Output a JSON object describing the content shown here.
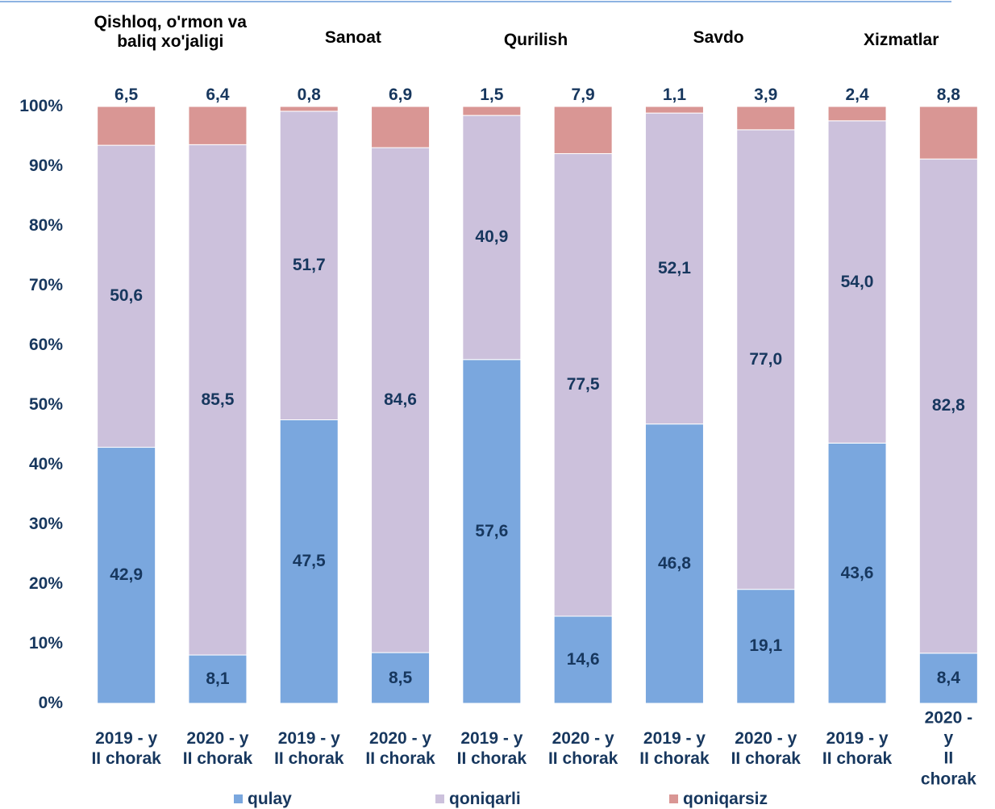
{
  "chart_data": {
    "type": "stacked_bar",
    "groups": [
      "Qishloq, o'rmon va\nbaliq xo'jaligi",
      "Sanoat",
      "Qurilish",
      "Savdo",
      "Xizmatlar"
    ],
    "categories": [
      "2019 - y\nII chorak",
      "2020 - y\nII chorak",
      "2019 - y\nII chorak",
      "2020 - y\nII chorak",
      "2019 - y\nII chorak",
      "2020 - y\nII chorak",
      "2019 - y\nII chorak",
      "2020 - y\nII chorak",
      "2019 - y\nII chorak",
      "2020 - y\nII chorak"
    ],
    "series": [
      {
        "name": "qulay",
        "color": "#7aa7de",
        "values": [
          42.9,
          8.1,
          47.5,
          8.5,
          57.6,
          14.6,
          46.8,
          19.1,
          43.6,
          8.4
        ],
        "value_labels": [
          "42,9",
          "8,1",
          "47,5",
          "8,5",
          "57,6",
          "14,6",
          "46,8",
          "19,1",
          "43,6",
          "8,4"
        ]
      },
      {
        "name": "qoniqarli",
        "color": "#ccc1dc",
        "values": [
          50.6,
          85.5,
          51.7,
          84.6,
          40.9,
          77.5,
          52.1,
          77.0,
          54.0,
          82.8
        ],
        "value_labels": [
          "50,6",
          "85,5",
          "51,7",
          "84,6",
          "40,9",
          "77,5",
          "52,1",
          "77,0",
          "54,0",
          "82,8"
        ]
      },
      {
        "name": "qoniqarsiz",
        "color": "#d99694",
        "values": [
          6.5,
          6.4,
          0.8,
          6.9,
          1.5,
          7.9,
          1.1,
          3.9,
          2.4,
          8.8
        ],
        "value_labels": [
          "6,5",
          "6,4",
          "0,8",
          "6,9",
          "1,5",
          "7,9",
          "1,1",
          "3,9",
          "2,4",
          "8,8"
        ]
      }
    ],
    "ylim": [
      0,
      100
    ],
    "yticks": [
      {
        "value": 0,
        "label": "0%"
      },
      {
        "value": 10,
        "label": "10%"
      },
      {
        "value": 20,
        "label": "20%"
      },
      {
        "value": 30,
        "label": "30%"
      },
      {
        "value": 40,
        "label": "40%"
      },
      {
        "value": 50,
        "label": "50%"
      },
      {
        "value": 60,
        "label": "60%"
      },
      {
        "value": 70,
        "label": "70%"
      },
      {
        "value": 80,
        "label": "80%"
      },
      {
        "value": 90,
        "label": "90%"
      },
      {
        "value": 100,
        "label": "100%"
      }
    ],
    "legend": "bottom"
  }
}
